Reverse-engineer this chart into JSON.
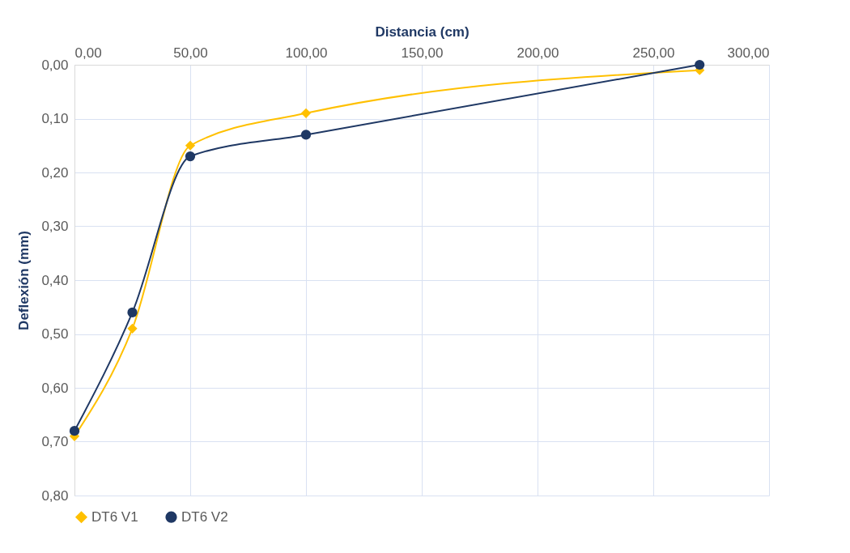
{
  "chart_data": {
    "type": "line",
    "xlabel": "Distancia (cm)",
    "ylabel": "Deflexión (mm)",
    "xlim": [
      0,
      300
    ],
    "xticks": [
      {
        "value": 0,
        "label": "0,00"
      },
      {
        "value": 50,
        "label": "50,00"
      },
      {
        "value": 100,
        "label": "100,00"
      },
      {
        "value": 150,
        "label": "150,00"
      },
      {
        "value": 200,
        "label": "200,00"
      },
      {
        "value": 250,
        "label": "250,00"
      },
      {
        "value": 300,
        "label": "300,00"
      }
    ],
    "ylim": [
      0.8,
      0
    ],
    "yticks": [
      {
        "value": 0,
        "label": "0,00"
      },
      {
        "value": 0.1,
        "label": "0,10"
      },
      {
        "value": 0.2,
        "label": "0,20"
      },
      {
        "value": 0.3,
        "label": "0,30"
      },
      {
        "value": 0.4,
        "label": "0,40"
      },
      {
        "value": 0.5,
        "label": "0,50"
      },
      {
        "value": 0.6,
        "label": "0,60"
      },
      {
        "value": 0.7,
        "label": "0,70"
      },
      {
        "value": 0.8,
        "label": "0,80"
      }
    ],
    "x": [
      0,
      25,
      50,
      100,
      270
    ],
    "grid": true,
    "legend": "bottom",
    "series": [
      {
        "name": "DT6 V1",
        "color": "#ffc000",
        "marker": "diamond",
        "values": [
          0.69,
          0.49,
          0.15,
          0.09,
          0.01
        ]
      },
      {
        "name": "DT6 V2",
        "color": "#1f3864",
        "marker": "circle",
        "values": [
          0.68,
          0.46,
          0.17,
          0.13,
          0.0
        ]
      }
    ]
  }
}
